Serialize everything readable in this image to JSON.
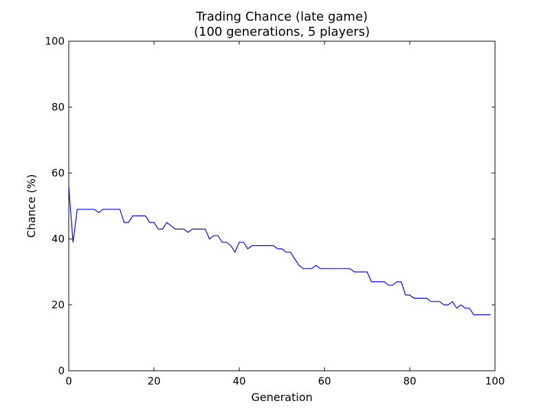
{
  "chart_data": {
    "type": "line",
    "title": "Trading Chance (late game)",
    "subtitle": "(100 generations, 5 players)",
    "xlabel": "Generation",
    "ylabel": "Chance (%)",
    "xlim": [
      0,
      100
    ],
    "ylim": [
      0,
      100
    ],
    "x_ticks": [
      0,
      20,
      40,
      60,
      80,
      100
    ],
    "y_ticks": [
      0,
      20,
      40,
      60,
      80,
      100
    ],
    "grid": false,
    "series_color": "#0000ff",
    "series": [
      {
        "x": [
          0,
          1,
          2,
          3,
          4,
          5,
          6,
          7,
          8,
          9,
          10,
          11,
          12,
          13,
          14,
          15,
          16,
          17,
          18,
          19,
          20,
          21,
          22,
          23,
          24,
          25,
          26,
          27,
          28,
          29,
          30,
          31,
          32,
          33,
          34,
          35,
          36,
          37,
          38,
          39,
          40,
          41,
          42,
          43,
          44,
          45,
          46,
          47,
          48,
          49,
          50,
          51,
          52,
          53,
          54,
          55,
          56,
          57,
          58,
          59,
          60,
          61,
          62,
          63,
          64,
          65,
          66,
          67,
          68,
          69,
          70,
          71,
          72,
          73,
          74,
          75,
          76,
          77,
          78,
          79,
          80,
          81,
          82,
          83,
          84,
          85,
          86,
          87,
          88,
          89,
          90,
          91,
          92,
          93,
          94,
          95,
          96,
          97,
          98,
          99
        ],
        "values": [
          56,
          39,
          49,
          49,
          49,
          49,
          49,
          48,
          49,
          49,
          49,
          49,
          49,
          45,
          45,
          47,
          47,
          47,
          47,
          45,
          45,
          43,
          43,
          45,
          44,
          43,
          43,
          43,
          42,
          43,
          43,
          43,
          43,
          40,
          41,
          41,
          39,
          39,
          38,
          36,
          39,
          39,
          37,
          38,
          38,
          38,
          38,
          38,
          38,
          37,
          37,
          36,
          36,
          34,
          32,
          31,
          31,
          31,
          32,
          31,
          31,
          31,
          31,
          31,
          31,
          31,
          31,
          30,
          30,
          30,
          30,
          27,
          27,
          27,
          27,
          26,
          26,
          27,
          27,
          23,
          23,
          22,
          22,
          22,
          22,
          21,
          21,
          21,
          20,
          20,
          21,
          19,
          20,
          19,
          19,
          17,
          17,
          17,
          17,
          17
        ]
      }
    ]
  }
}
